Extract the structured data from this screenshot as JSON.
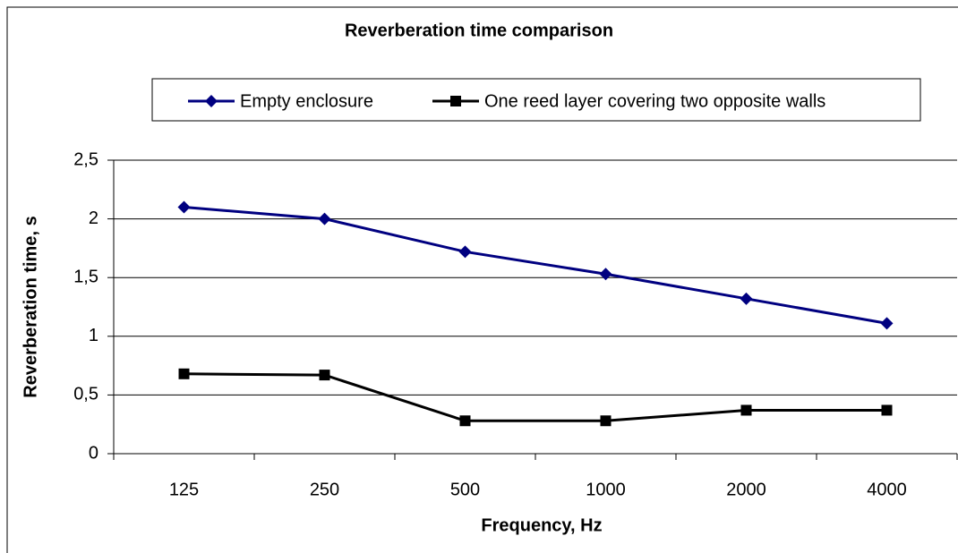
{
  "chart_data": {
    "type": "line",
    "title": "Reverberation time comparison",
    "x_label": "Frequency, Hz",
    "y_label": "Reverberation time, s",
    "categories": [
      "125",
      "250",
      "500",
      "1000",
      "2000",
      "4000"
    ],
    "series": [
      {
        "name": "Empty enclosure",
        "color": "#000080",
        "marker": "diamond",
        "values": [
          2.1,
          2.0,
          1.72,
          1.53,
          1.32,
          1.11
        ]
      },
      {
        "name": "One reed layer covering two opposite walls",
        "color": "#000000",
        "marker": "square",
        "values": [
          0.68,
          0.67,
          0.28,
          0.28,
          0.37,
          0.37
        ]
      }
    ],
    "ylim": [
      0,
      2.5
    ],
    "yticks": [
      0,
      {
        "value": 0.5,
        "label": "0,5"
      },
      1,
      {
        "value": 1.5,
        "label": "1,5"
      },
      2,
      {
        "value": 2.5,
        "label": "2,5"
      }
    ],
    "grid": true,
    "legend": "top"
  }
}
